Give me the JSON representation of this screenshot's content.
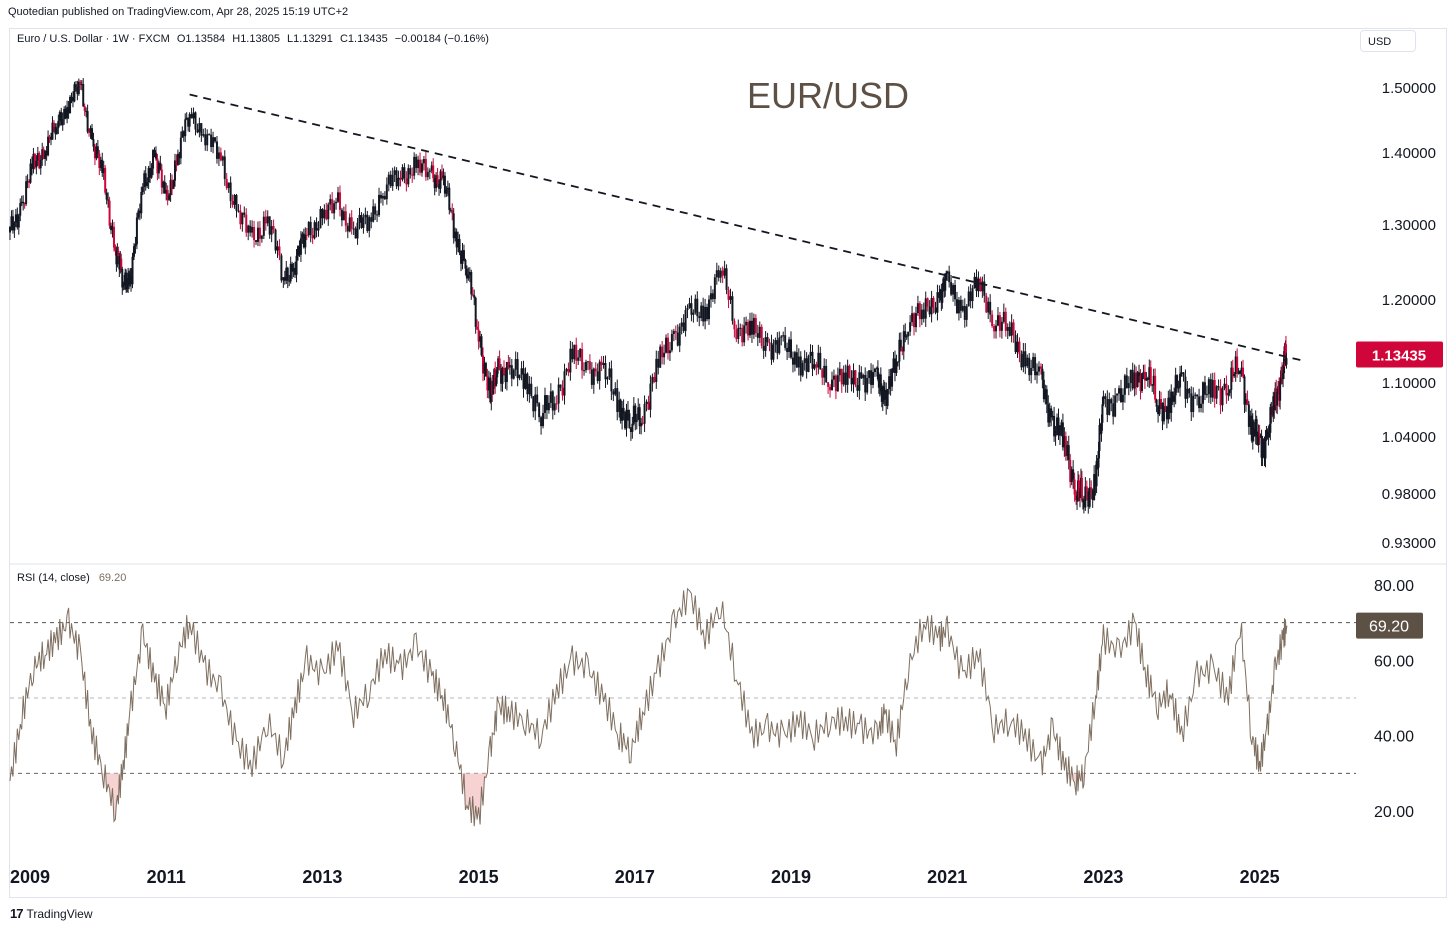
{
  "header": {
    "publisher": "Quotedian published on TradingView.com, Apr 28, 2025 15:19 UTC+2"
  },
  "legend": {
    "symbol": "Euro / U.S. Dollar · 1W · FXCM",
    "open": "O1.13584",
    "high": "H1.13805",
    "low": "L1.13291",
    "close": "C1.13435",
    "change": "−0.00184 (−0.16%)"
  },
  "currency_button": "USD",
  "rsi_legend": {
    "label": "RSI (14, close)",
    "value": "69.20"
  },
  "footer": {
    "brand": "TradingView"
  },
  "colors": {
    "candle": "#131722",
    "down_accent": "#d0053a",
    "price_badge": "#d0053a",
    "rsi_line": "#7e6f60",
    "rsi_badge": "#5d5146",
    "rsi_oversold_fill": "#f6d2d2",
    "trendline": "#131722",
    "title": "#5d5146"
  },
  "chart_data": [
    {
      "type": "candlestick",
      "title": "EUR/USD",
      "interval": "1W",
      "last_price": "1.13435",
      "price_ticks": [
        "1.50000",
        "1.40000",
        "1.30000",
        "1.20000",
        "1.10000",
        "1.04000",
        "0.98000",
        "0.93000"
      ],
      "x_ticks": [
        "2009",
        "2011",
        "2013",
        "2015",
        "2017",
        "2019",
        "2021",
        "2023",
        "2025"
      ],
      "ylim": [
        0.93,
        1.52
      ],
      "xlim": [
        2009.0,
        2025.85
      ],
      "trendline": {
        "x": [
          2011.3,
          2025.55
        ],
        "y": [
          1.49,
          1.127
        ]
      },
      "series": {
        "x": [
          2009.0,
          2009.15,
          2009.3,
          2009.45,
          2009.6,
          2009.75,
          2009.9,
          2010.05,
          2010.2,
          2010.35,
          2010.45,
          2010.55,
          2010.7,
          2010.85,
          2011.0,
          2011.15,
          2011.3,
          2011.5,
          2011.7,
          2011.9,
          2012.1,
          2012.3,
          2012.5,
          2012.65,
          2012.8,
          2013.0,
          2013.2,
          2013.4,
          2013.6,
          2013.8,
          2014.0,
          2014.2,
          2014.4,
          2014.55,
          2014.7,
          2014.85,
          2015.0,
          2015.15,
          2015.25,
          2015.4,
          2015.6,
          2015.8,
          2016.0,
          2016.2,
          2016.4,
          2016.6,
          2016.8,
          2016.95,
          2017.1,
          2017.3,
          2017.5,
          2017.7,
          2017.9,
          2018.1,
          2018.3,
          2018.5,
          2018.7,
          2018.9,
          2019.1,
          2019.3,
          2019.5,
          2019.7,
          2019.9,
          2020.1,
          2020.2,
          2020.35,
          2020.5,
          2020.7,
          2020.9,
          2021.0,
          2021.2,
          2021.4,
          2021.6,
          2021.8,
          2022.0,
          2022.2,
          2022.35,
          2022.5,
          2022.65,
          2022.75,
          2022.9,
          2023.0,
          2023.2,
          2023.4,
          2023.55,
          2023.7,
          2023.85,
          2024.0,
          2024.2,
          2024.4,
          2024.6,
          2024.75,
          2024.9,
          2025.0,
          2025.1,
          2025.2,
          2025.3,
          2025.35
        ],
        "close": [
          1.29,
          1.33,
          1.38,
          1.41,
          1.44,
          1.48,
          1.5,
          1.42,
          1.36,
          1.27,
          1.22,
          1.24,
          1.35,
          1.4,
          1.33,
          1.4,
          1.46,
          1.43,
          1.39,
          1.32,
          1.28,
          1.31,
          1.23,
          1.25,
          1.29,
          1.31,
          1.33,
          1.29,
          1.31,
          1.35,
          1.37,
          1.38,
          1.37,
          1.36,
          1.29,
          1.24,
          1.16,
          1.08,
          1.12,
          1.11,
          1.11,
          1.06,
          1.09,
          1.13,
          1.12,
          1.11,
          1.08,
          1.05,
          1.07,
          1.12,
          1.16,
          1.18,
          1.19,
          1.24,
          1.17,
          1.16,
          1.15,
          1.14,
          1.13,
          1.12,
          1.11,
          1.1,
          1.11,
          1.1,
          1.09,
          1.12,
          1.18,
          1.18,
          1.21,
          1.22,
          1.19,
          1.22,
          1.18,
          1.16,
          1.13,
          1.1,
          1.06,
          1.03,
          0.99,
          0.97,
          1.0,
          1.07,
          1.09,
          1.1,
          1.12,
          1.07,
          1.08,
          1.1,
          1.08,
          1.09,
          1.1,
          1.12,
          1.05,
          1.03,
          1.04,
          1.08,
          1.12,
          1.134
        ]
      }
    },
    {
      "type": "line",
      "title": "RSI (14, close)",
      "y_ticks": [
        "80.00",
        "60.00",
        "40.00",
        "20.00"
      ],
      "ylim": [
        15,
        83
      ],
      "levels": [
        70,
        50,
        30
      ],
      "last_value": "69.20",
      "series": {
        "x": [
          2009.0,
          2009.15,
          2009.3,
          2009.45,
          2009.6,
          2009.75,
          2009.9,
          2010.05,
          2010.2,
          2010.35,
          2010.45,
          2010.55,
          2010.7,
          2010.85,
          2011.0,
          2011.15,
          2011.3,
          2011.5,
          2011.7,
          2011.9,
          2012.1,
          2012.3,
          2012.5,
          2012.65,
          2012.8,
          2013.0,
          2013.2,
          2013.4,
          2013.6,
          2013.8,
          2014.0,
          2014.2,
          2014.4,
          2014.55,
          2014.7,
          2014.85,
          2015.0,
          2015.15,
          2015.25,
          2015.4,
          2015.6,
          2015.8,
          2016.0,
          2016.2,
          2016.4,
          2016.6,
          2016.8,
          2016.95,
          2017.1,
          2017.3,
          2017.5,
          2017.7,
          2017.9,
          2018.1,
          2018.3,
          2018.5,
          2018.7,
          2018.9,
          2019.1,
          2019.3,
          2019.5,
          2019.7,
          2019.9,
          2020.1,
          2020.2,
          2020.35,
          2020.5,
          2020.7,
          2020.9,
          2021.0,
          2021.2,
          2021.4,
          2021.6,
          2021.8,
          2022.0,
          2022.2,
          2022.35,
          2022.5,
          2022.65,
          2022.75,
          2022.9,
          2023.0,
          2023.2,
          2023.4,
          2023.55,
          2023.7,
          2023.85,
          2024.0,
          2024.2,
          2024.4,
          2024.6,
          2024.75,
          2024.9,
          2025.0,
          2025.1,
          2025.2,
          2025.3,
          2025.35
        ],
        "values": [
          28,
          45,
          58,
          62,
          66,
          70,
          62,
          40,
          30,
          20,
          32,
          48,
          67,
          55,
          48,
          62,
          70,
          58,
          52,
          38,
          32,
          44,
          34,
          48,
          60,
          56,
          64,
          46,
          52,
          62,
          58,
          64,
          56,
          50,
          38,
          22,
          18,
          36,
          48,
          46,
          44,
          40,
          52,
          60,
          58,
          50,
          40,
          36,
          46,
          58,
          70,
          78,
          66,
          75,
          56,
          40,
          42,
          40,
          44,
          40,
          44,
          44,
          42,
          40,
          46,
          38,
          58,
          70,
          66,
          68,
          56,
          62,
          42,
          44,
          40,
          32,
          42,
          32,
          28,
          30,
          50,
          66,
          62,
          70,
          56,
          48,
          52,
          40,
          56,
          58,
          50,
          70,
          40,
          32,
          42,
          58,
          66,
          69.2
        ]
      }
    }
  ]
}
